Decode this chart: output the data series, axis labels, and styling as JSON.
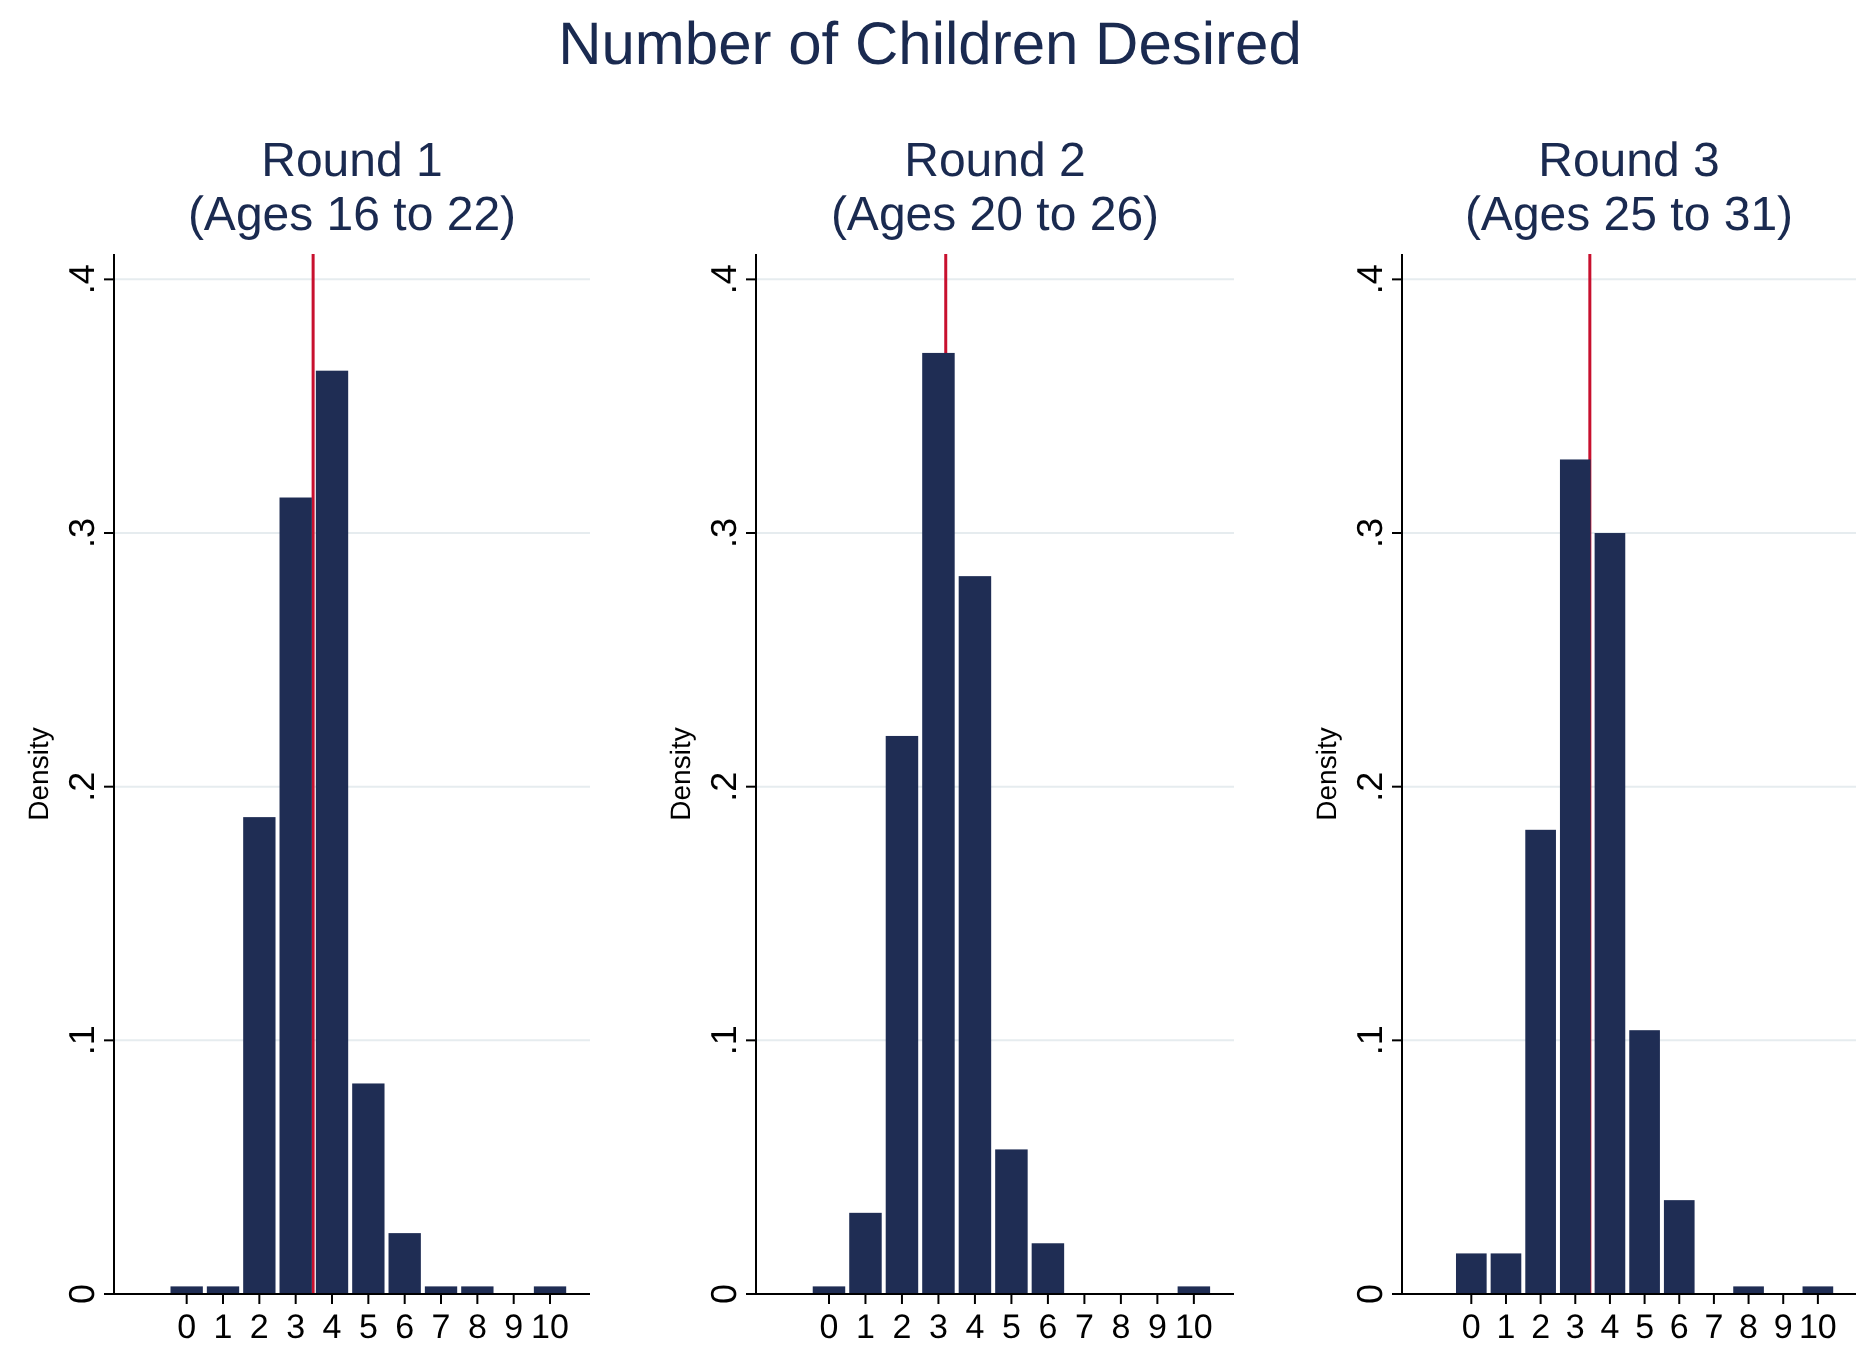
{
  "chart_data": [
    {
      "type": "other",
      "title": "Number of Children Desired"
    },
    {
      "type": "histogram",
      "title": "Round 1",
      "subtitle": "(Ages 16 to 22)",
      "ylabel": "Density",
      "bins": [
        -0.5,
        0.5,
        1.5,
        2.5,
        3.5,
        4.5,
        5.5,
        6.5,
        7.5,
        8.5,
        9.5,
        10.5
      ],
      "values": [
        0.003,
        0.003,
        0.188,
        0.314,
        0.364,
        0.083,
        0.024,
        0.003,
        0.003,
        0,
        0.003
      ],
      "color": "#1f2d54",
      "xlim": [
        -2,
        11.1
      ],
      "xticks": [
        0,
        1,
        2,
        3,
        4,
        5,
        6,
        7,
        8,
        9,
        10
      ],
      "ylim": [
        0,
        0.41
      ],
      "yticks": [
        {
          "value": 0,
          "label": "0"
        },
        {
          "value": 0.1,
          "label": ".1"
        },
        {
          "value": 0.2,
          "label": ".2"
        },
        {
          "value": 0.3,
          "label": ".3"
        },
        {
          "value": 0.4,
          "label": ".4"
        }
      ],
      "grid": "y",
      "ref_lines": [
        {
          "axis": "x",
          "value": 3.48,
          "color": "#c8102e"
        }
      ]
    },
    {
      "type": "histogram",
      "title": "Round 2",
      "subtitle": "(Ages 20 to 26)",
      "ylabel": "Density",
      "bins": [
        -0.5,
        0.5,
        1.5,
        2.5,
        3.5,
        4.5,
        5.5,
        6.5,
        7.5,
        8.5,
        9.5,
        10.5
      ],
      "values": [
        0.003,
        0.032,
        0.22,
        0.371,
        0.283,
        0.057,
        0.02,
        0,
        0,
        0,
        0.003
      ],
      "color": "#1f2d54",
      "xlim": [
        -2,
        11.1
      ],
      "xticks": [
        0,
        1,
        2,
        3,
        4,
        5,
        6,
        7,
        8,
        9,
        10
      ],
      "ylim": [
        0,
        0.41
      ],
      "yticks": [
        {
          "value": 0,
          "label": "0"
        },
        {
          "value": 0.1,
          "label": ".1"
        },
        {
          "value": 0.2,
          "label": ".2"
        },
        {
          "value": 0.3,
          "label": ".3"
        },
        {
          "value": 0.4,
          "label": ".4"
        }
      ],
      "grid": "y",
      "ref_lines": [
        {
          "axis": "x",
          "value": 3.2,
          "color": "#c8102e"
        }
      ]
    },
    {
      "type": "histogram",
      "title": "Round 3",
      "subtitle": "(Ages 25 to 31)",
      "ylabel": "Density",
      "bins": [
        -0.5,
        0.5,
        1.5,
        2.5,
        3.5,
        4.5,
        5.5,
        6.5,
        7.5,
        8.5,
        9.5,
        10.5
      ],
      "values": [
        0.016,
        0.016,
        0.183,
        0.329,
        0.3,
        0.104,
        0.037,
        0,
        0.003,
        0,
        0.003
      ],
      "color": "#1f2d54",
      "xlim": [
        -2,
        11.1
      ],
      "xticks": [
        0,
        1,
        2,
        3,
        4,
        5,
        6,
        7,
        8,
        9,
        10
      ],
      "ylim": [
        0,
        0.41
      ],
      "yticks": [
        {
          "value": 0,
          "label": "0"
        },
        {
          "value": 0.1,
          "label": ".1"
        },
        {
          "value": 0.2,
          "label": ".2"
        },
        {
          "value": 0.3,
          "label": ".3"
        },
        {
          "value": 0.4,
          "label": ".4"
        }
      ],
      "grid": "y",
      "ref_lines": [
        {
          "axis": "x",
          "value": 3.42,
          "color": "#c8102e"
        }
      ]
    }
  ]
}
